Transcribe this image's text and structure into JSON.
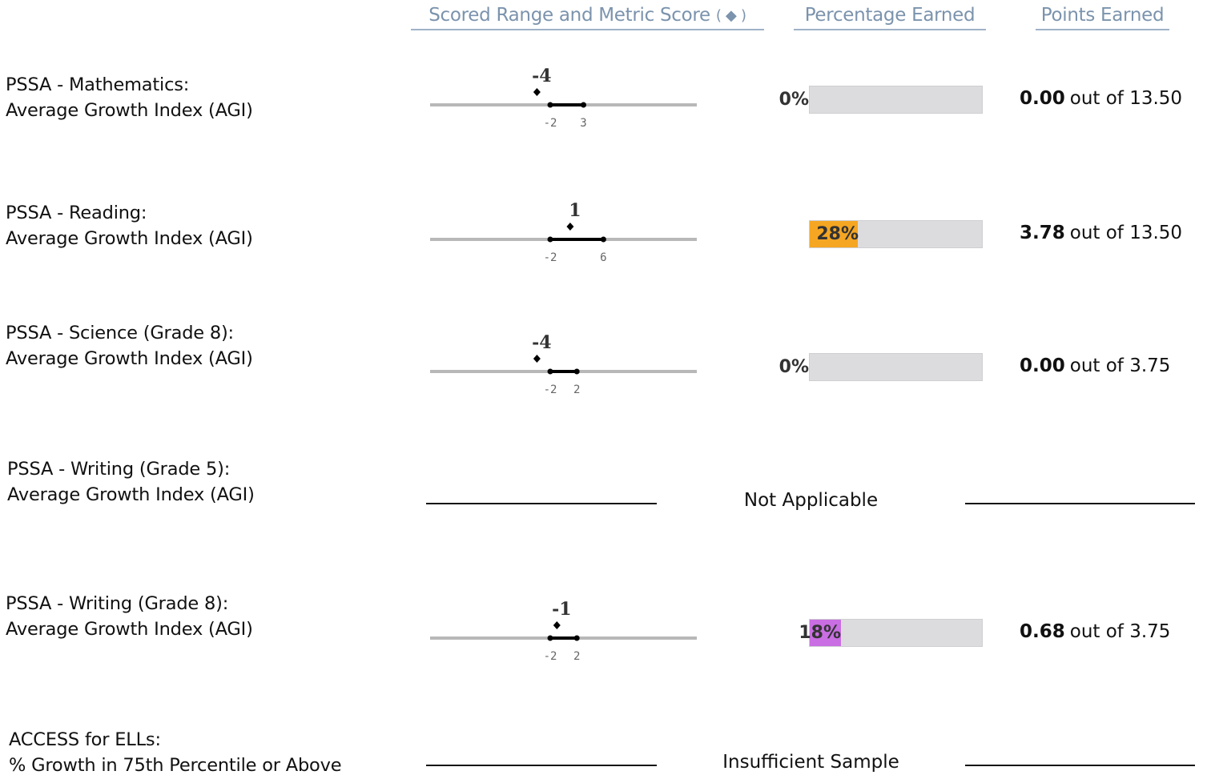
{
  "headers": {
    "range": "Scored Range and Metric Score",
    "range_symbol": "( ◆ )",
    "percentage": "Percentage Earned",
    "points": "Points Earned"
  },
  "rows": [
    {
      "line1": "PSSA - Mathematics:",
      "line2": "Average Growth Index (AGI)",
      "type": "score",
      "range_min": "-2",
      "range_max": "3",
      "range_min_val": -2,
      "range_max_val": 3,
      "score": "-4",
      "score_val": -4,
      "percent_label": "0%",
      "percent_value": 0,
      "points": "0.00",
      "out_of": "out of",
      "max_points": "13.50",
      "fill_color": "#f5a623"
    },
    {
      "line1": "PSSA - Reading:",
      "line2": "Average Growth Index (AGI)",
      "type": "score",
      "range_min": "-2",
      "range_max": "6",
      "range_min_val": -2,
      "range_max_val": 6,
      "score": "1",
      "score_val": 1,
      "percent_label": "28%",
      "percent_value": 28,
      "points": "3.78",
      "out_of": "out of",
      "max_points": "13.50",
      "fill_color": "#f5a623"
    },
    {
      "line1": "PSSA - Science (Grade 8):",
      "line2": "Average Growth Index (AGI)",
      "type": "score",
      "range_min": "-2",
      "range_max": "2",
      "range_min_val": -2,
      "range_max_val": 2,
      "score": "-4",
      "score_val": -4,
      "percent_label": "0%",
      "percent_value": 0,
      "points": "0.00",
      "out_of": "out of",
      "max_points": "3.75",
      "fill_color": "#f5a623"
    },
    {
      "line1": "PSSA - Writing (Grade 5):",
      "line2": "Average Growth Index (AGI)",
      "type": "status",
      "status": "Not Applicable"
    },
    {
      "line1": "PSSA - Writing (Grade 8):",
      "line2": "Average Growth Index (AGI)",
      "type": "score",
      "range_min": "-2",
      "range_max": "2",
      "range_min_val": -2,
      "range_max_val": 2,
      "score": "-1",
      "score_val": -1,
      "percent_label": "18%",
      "percent_value": 18,
      "points": "0.68",
      "out_of": "out of",
      "max_points": "3.75",
      "fill_color": "#c96ee3"
    },
    {
      "line1": "ACCESS for ELLs:",
      "line2": "% Growth in 75th Percentile or Above",
      "type": "status",
      "status": "Insufficient Sample"
    }
  ]
}
